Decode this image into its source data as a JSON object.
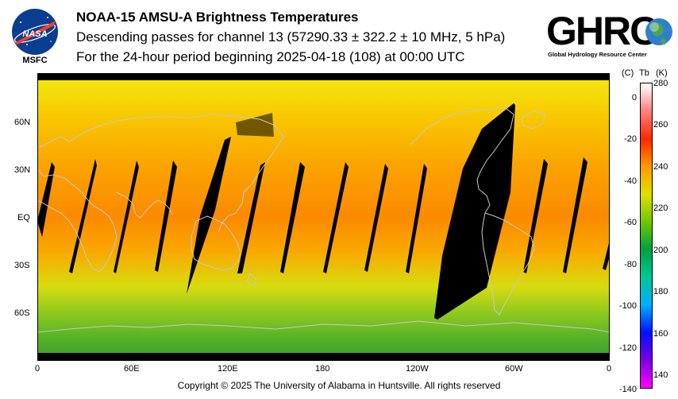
{
  "header": {
    "title": "NOAA-15 AMSU-A Brightness Temperatures",
    "subtitle1": "Descending passes for channel 13 (57290.33 ± 322.2 ± 10 MHz, 5 hPa)",
    "subtitle2": "For the 24-hour period beginning 2025-04-18 (108) at 00:00 UTC"
  },
  "logos": {
    "nasa_text": "NASA",
    "msfc_label": "MSFC",
    "ghrc_text": "GHRC",
    "ghrc_subtitle": "Global Hydrology Resource Center"
  },
  "map": {
    "lat_labels": [
      "60N",
      "30N",
      "EQ",
      "30S",
      "60S"
    ],
    "lat_values": [
      60,
      30,
      0,
      -30,
      -60
    ],
    "lon_labels": [
      "0",
      "60E",
      "120E",
      "180",
      "120W",
      "60W",
      "0"
    ],
    "lon_values": [
      0,
      60,
      120,
      180,
      240,
      300,
      360
    ]
  },
  "colorbar": {
    "unit_c": "(C)",
    "unit_tb": "Tb",
    "unit_k": "(K)",
    "c_ticks": [
      "0",
      "-20",
      "-40",
      "-60",
      "-80",
      "-100",
      "-120",
      "-140"
    ],
    "c_values": [
      0,
      -20,
      -40,
      -60,
      -80,
      -100,
      -120,
      -140
    ],
    "k_ticks": [
      "280",
      "260",
      "240",
      "220",
      "200",
      "180",
      "160",
      "140"
    ],
    "k_values": [
      280,
      260,
      240,
      220,
      200,
      180,
      160,
      140
    ],
    "range_k": [
      134,
      280
    ],
    "colors": [
      "#ff00ff",
      "#7b00e0",
      "#0010ff",
      "#00b0ff",
      "#00c896",
      "#00a040",
      "#70c800",
      "#e0e000",
      "#ff9a00",
      "#ff2800",
      "#ff8080",
      "#ffffff"
    ]
  },
  "footer": {
    "copyright": "Copyright © 2025 The University of Alabama in Huntsville.  All rights reserved"
  }
}
